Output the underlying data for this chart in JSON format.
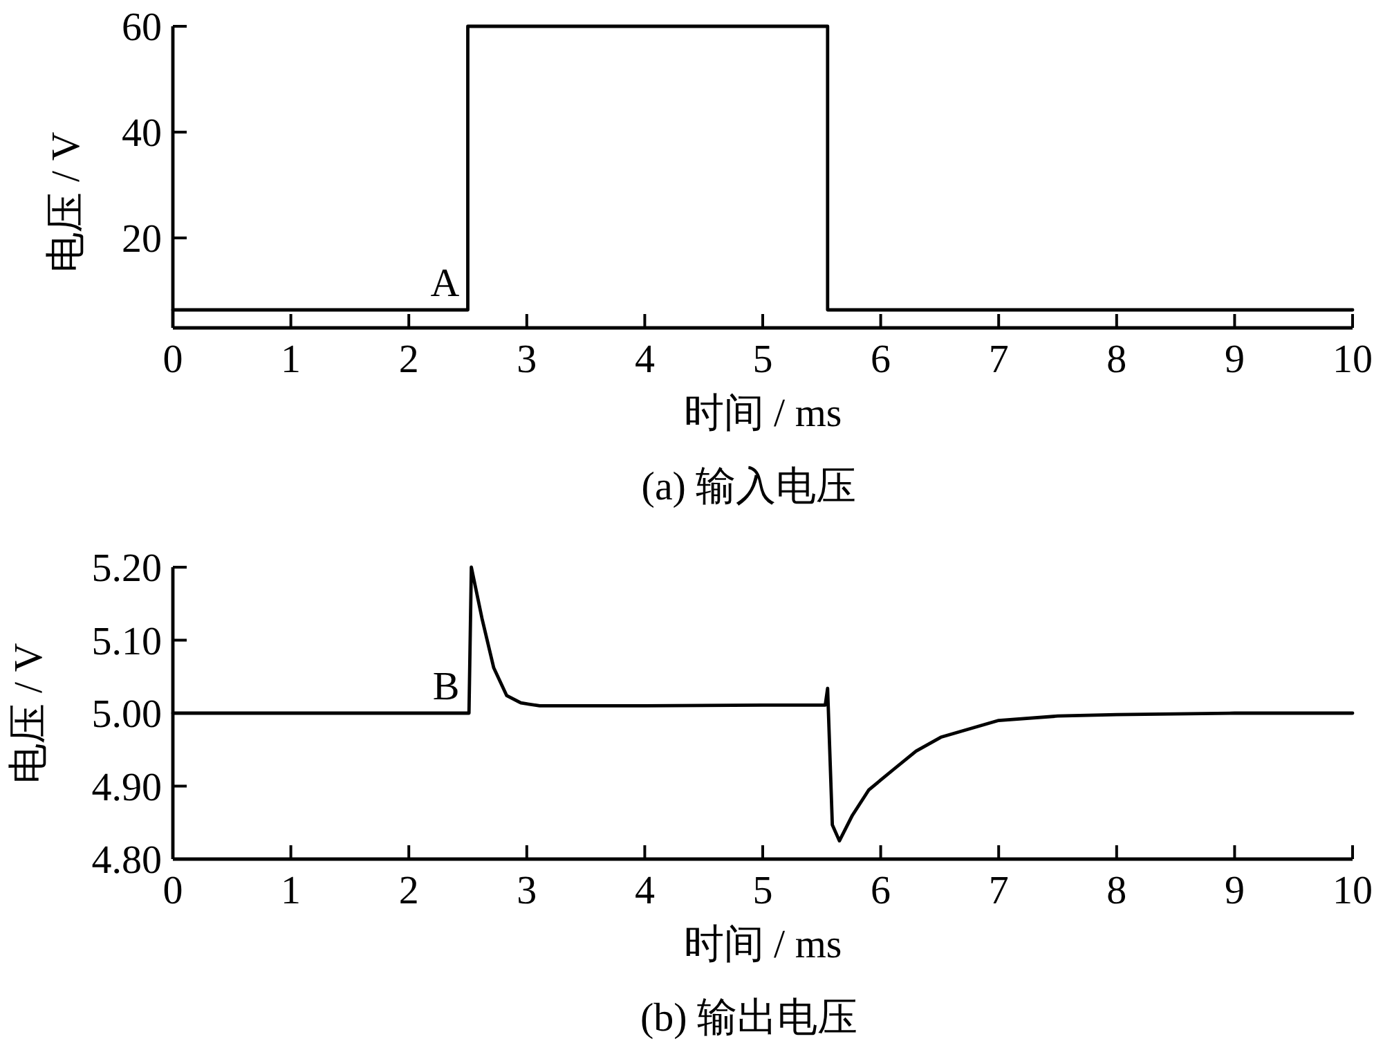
{
  "chart_data": [
    {
      "type": "line",
      "title": "(a) 输入电压",
      "xlabel": "时间 / ms",
      "ylabel": "电压 / V",
      "xlim": [
        0,
        10
      ],
      "ylim": [
        3,
        60
      ],
      "xticks": [
        0,
        1,
        2,
        3,
        4,
        5,
        6,
        7,
        8,
        9,
        10
      ],
      "yticks": [
        20,
        40,
        60
      ],
      "series": [
        {
          "color": "#000000",
          "x": [
            0,
            2.5,
            2.5,
            5.55,
            5.55,
            10
          ],
          "values": [
            6.4,
            6.4,
            60,
            60,
            6.4,
            6.4
          ]
        }
      ],
      "annotations": [
        {
          "text": "A",
          "x": 2.5,
          "y": 6.4
        }
      ]
    },
    {
      "type": "line",
      "title": "(b) 输出电压",
      "xlabel": "时间 / ms",
      "ylabel": "电压 / V",
      "xlim": [
        0,
        10
      ],
      "ylim": [
        4.8,
        5.2
      ],
      "xticks": [
        0,
        1,
        2,
        3,
        4,
        5,
        6,
        7,
        8,
        9,
        10
      ],
      "yticks": [
        {
          "value": 4.8,
          "label": "4.80"
        },
        {
          "value": 4.9,
          "label": "4.90"
        },
        {
          "value": 5.0,
          "label": "5.00"
        },
        {
          "value": 5.1,
          "label": "5.10"
        },
        {
          "value": 5.2,
          "label": "5.20"
        }
      ],
      "series": [
        {
          "color": "#000000",
          "x": [
            0,
            2.5,
            2.51,
            2.53,
            2.62,
            2.72,
            2.83,
            2.95,
            3.11,
            4.0,
            5.0,
            5.53,
            5.55,
            5.59,
            5.65,
            5.76,
            5.9,
            6.11,
            6.3,
            6.51,
            7.0,
            7.5,
            8.0,
            9.0,
            10
          ],
          "values": [
            5.0,
            5.0,
            5.0,
            5.2,
            5.13,
            5.062,
            5.024,
            5.014,
            5.01,
            5.01,
            5.011,
            5.011,
            5.034,
            4.847,
            4.825,
            4.86,
            4.895,
            4.923,
            4.948,
            4.967,
            4.99,
            4.996,
            4.998,
            5.0,
            5.0
          ]
        }
      ],
      "annotations": [
        {
          "text": "B",
          "x": 2.5,
          "y": 5.0
        }
      ]
    }
  ]
}
